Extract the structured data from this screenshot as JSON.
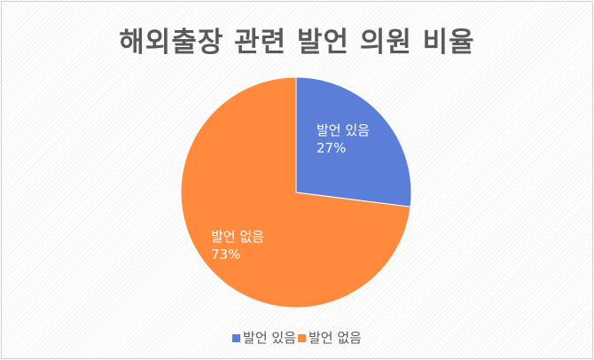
{
  "chart_data": {
    "type": "pie",
    "title": "해외출장 관련 발언 의원 비율",
    "categories": [
      "발언 있음",
      "발언 없음"
    ],
    "values": [
      27,
      73
    ],
    "labels": [
      "27%",
      "73%"
    ],
    "colors": [
      "#5b7fd9",
      "#ff8a3d"
    ],
    "legend": "bottom"
  }
}
